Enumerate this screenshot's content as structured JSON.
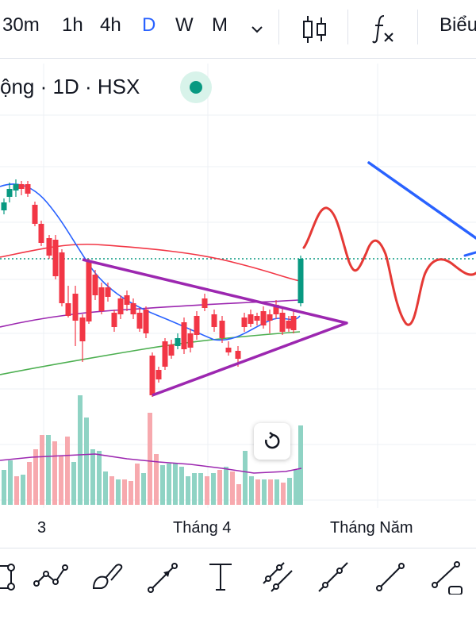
{
  "toolbar_top": {
    "timeframes": [
      {
        "label": "30m",
        "active": false
      },
      {
        "label": "1h",
        "active": false
      },
      {
        "label": "4h",
        "active": false
      },
      {
        "label": "D",
        "active": true
      },
      {
        "label": "W",
        "active": false
      },
      {
        "label": "M",
        "active": false
      }
    ],
    "more_icon": "chevron-down-icon",
    "chart_type_icon": "candlestick-icon",
    "indicators_icon": "fx-icon",
    "chart_label": "Biểu"
  },
  "legend": {
    "text": "ộng · 1D · HSX",
    "status_color": "#089981"
  },
  "x_axis": {
    "labels": [
      "3",
      "Tháng 4",
      "Tháng Năm"
    ]
  },
  "colors": {
    "up": "#089981",
    "down": "#f23645",
    "accent": "#2962ff",
    "triangle": "#9c27b0",
    "ma_blue": "#2962ff",
    "ma_red": "#f23645",
    "ma_purple": "#9c27b0",
    "ma_green": "#4caf50",
    "price_line": "#089981"
  },
  "drawing_tools": [
    "cursor-tool-icon",
    "polyline-icon",
    "brush-icon",
    "trend-arrow-icon",
    "text-tool-icon",
    "parallel-channel-icon",
    "ray-icon",
    "trend-line-icon",
    "extended-line-icon"
  ],
  "reset_icon": "reset-icon"
}
